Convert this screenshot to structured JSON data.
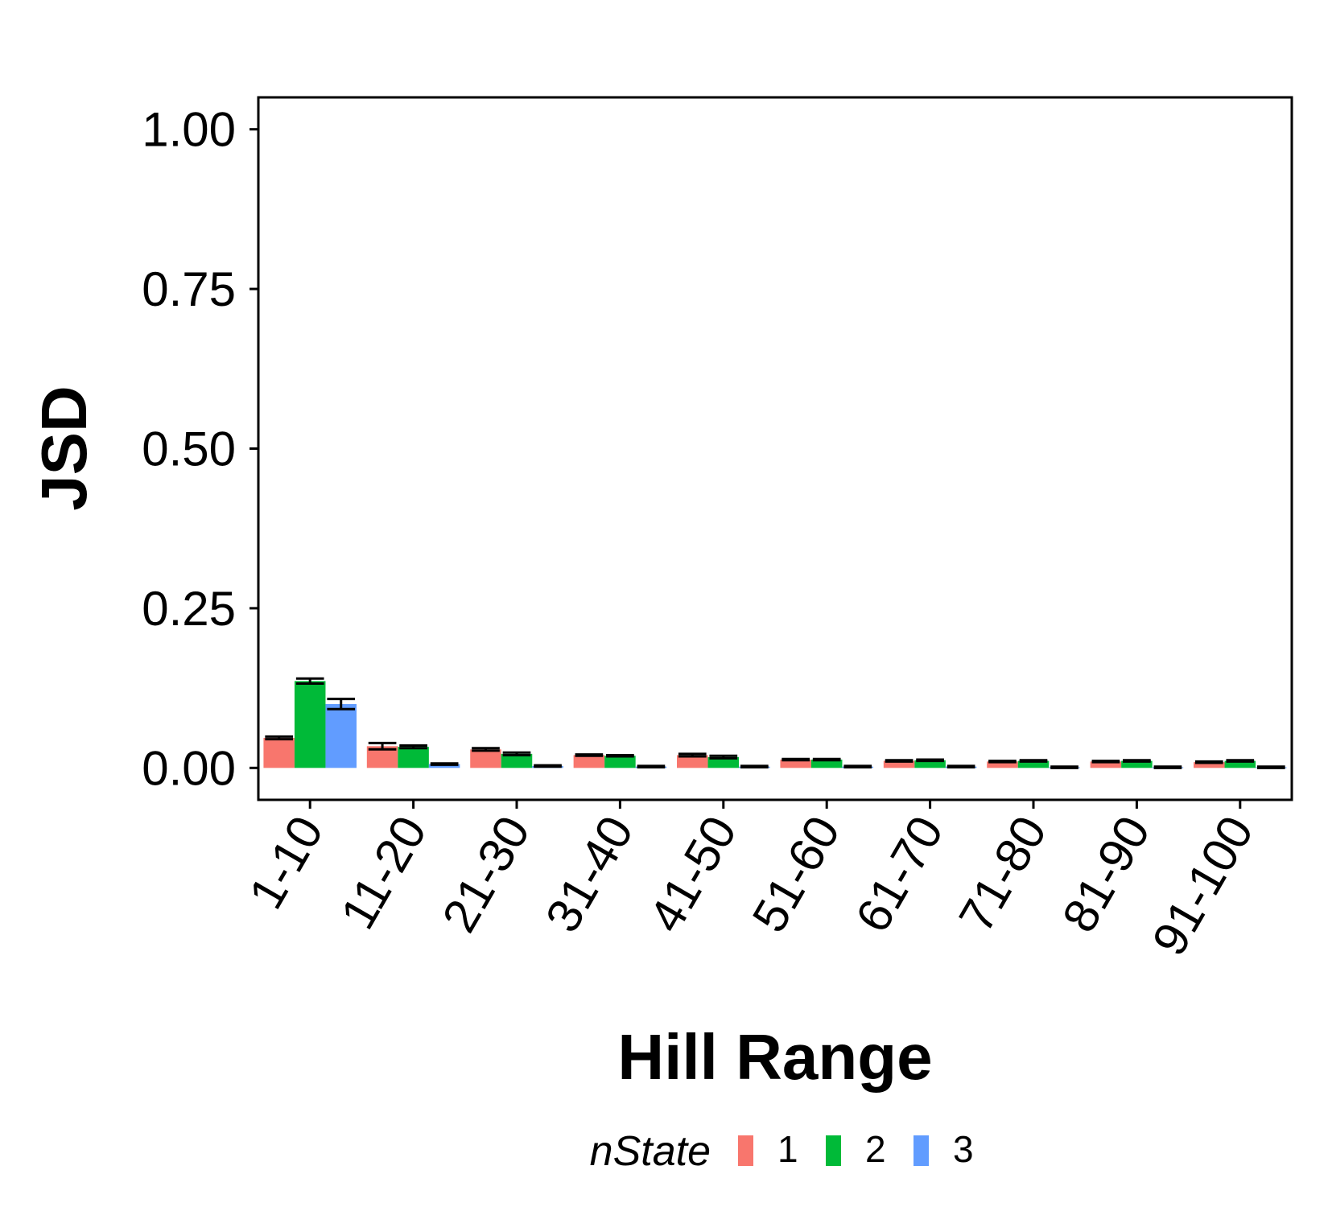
{
  "chart_data": {
    "type": "bar",
    "title": "",
    "xlabel": "Hill Range",
    "ylabel": "JSD",
    "ylim": [
      -0.05,
      1.05
    ],
    "yticks": [
      "0.00",
      "0.25",
      "0.50",
      "0.75",
      "1.00"
    ],
    "grid": false,
    "legend_position": "bottom",
    "legend_title": "nState",
    "categories": [
      "1-10",
      "11-20",
      "21-30",
      "31-40",
      "41-50",
      "51-60",
      "61-70",
      "71-80",
      "81-90",
      "91-100"
    ],
    "series": [
      {
        "name": "1",
        "color": "#F8766D",
        "values": [
          0.047,
          0.034,
          0.029,
          0.02,
          0.02,
          0.013,
          0.011,
          0.01,
          0.01,
          0.009
        ],
        "errors": [
          0.002,
          0.005,
          0.002,
          0.001,
          0.002,
          0.001,
          0.001,
          0.001,
          0.001,
          0.001
        ]
      },
      {
        "name": "2",
        "color": "#00BA38",
        "values": [
          0.136,
          0.033,
          0.022,
          0.019,
          0.017,
          0.013,
          0.012,
          0.011,
          0.011,
          0.011
        ],
        "errors": [
          0.004,
          0.002,
          0.002,
          0.001,
          0.002,
          0.001,
          0.001,
          0.001,
          0.001,
          0.001
        ]
      },
      {
        "name": "3",
        "color": "#619CFF",
        "values": [
          0.1,
          0.006,
          0.003,
          0.002,
          0.002,
          0.002,
          0.002,
          0.001,
          0.001,
          0.001
        ],
        "errors": [
          0.008,
          0.001,
          0.001,
          0.001,
          0.001,
          0.001,
          0.001,
          0.001,
          0.001,
          0.001
        ]
      }
    ]
  }
}
